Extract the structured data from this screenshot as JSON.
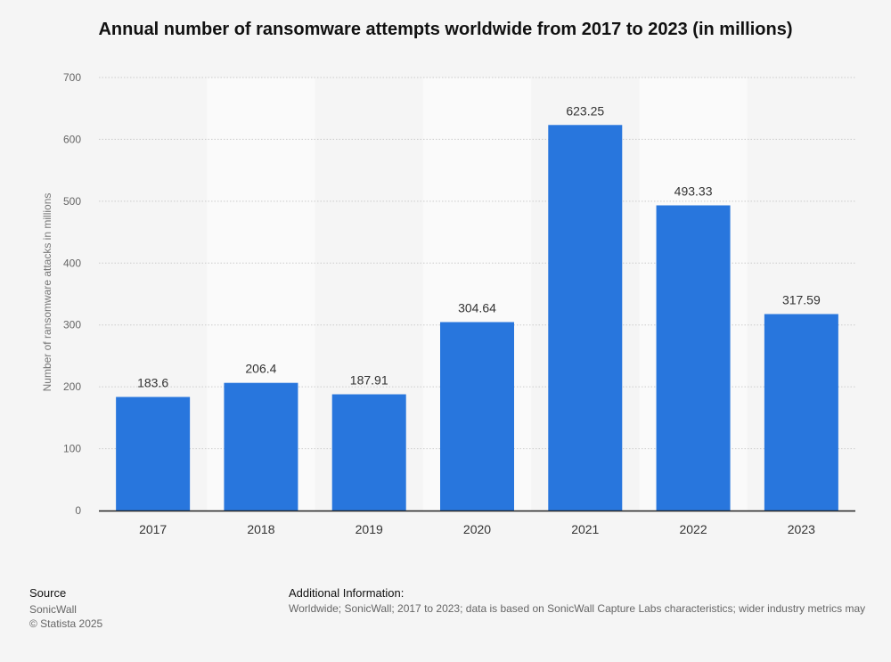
{
  "chart_data": {
    "type": "bar",
    "title": "Annual number of ransomware attempts worldwide from 2017 to 2023 (in millions)",
    "xlabel": "",
    "ylabel": "Number of ransomware attacks in millions",
    "categories": [
      "2017",
      "2018",
      "2019",
      "2020",
      "2021",
      "2022",
      "2023"
    ],
    "values": [
      183.6,
      206.4,
      187.91,
      304.64,
      623.25,
      493.33,
      317.59
    ],
    "value_labels": [
      "183.6",
      "206.4",
      "187.91",
      "304.64",
      "623.25",
      "493.33",
      "317.59"
    ],
    "ylim": [
      0,
      700
    ],
    "yticks": [
      0,
      100,
      200,
      300,
      400,
      500,
      600,
      700
    ],
    "grid": true,
    "legend": "none",
    "colors": {
      "bar": "#2876dd",
      "band": "#fafafa",
      "grid": "#cccccc",
      "axis": "#222222"
    }
  },
  "footer": {
    "source_heading": "Source",
    "source_name": "SonicWall",
    "copyright": "© Statista 2025",
    "info_heading": "Additional Information:",
    "info_text": "Worldwide; SonicWall; 2017 to 2023; data is based on SonicWall Capture Labs characteristics; wider industry metrics may"
  }
}
